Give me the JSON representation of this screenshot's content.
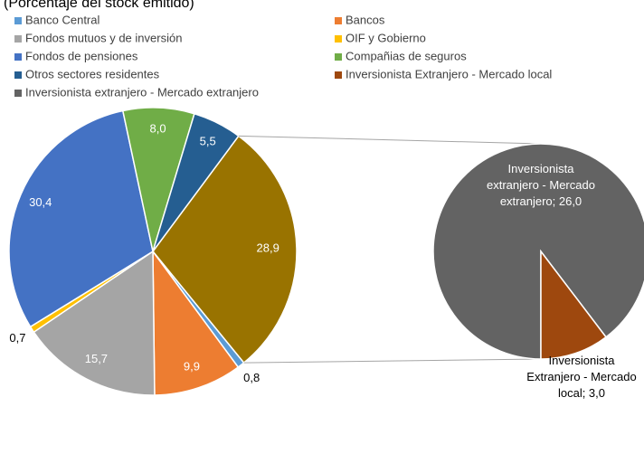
{
  "chart_data": {
    "type": "pie-of-pie",
    "subtitle": "(Porcentaje del stock emitido)",
    "series": [
      {
        "name": "Banco Central",
        "color": "#5b9bd5",
        "value": 0.8,
        "value_label": "0,8"
      },
      {
        "name": "Bancos",
        "color": "#ed7d31",
        "value": 9.9,
        "value_label": "9,9"
      },
      {
        "name": "Fondos mutuos y de inversión",
        "color": "#a5a5a5",
        "value": 15.7,
        "value_label": "15,7"
      },
      {
        "name": "OIF y Gobierno",
        "color": "#ffc000",
        "value": 0.7,
        "value_label": "0,7"
      },
      {
        "name": "Fondos de pensiones",
        "color": "#4472c4",
        "value": 30.4,
        "value_label": "30,4"
      },
      {
        "name": "Compañias de seguros",
        "color": "#70ad47",
        "value": 8.0,
        "value_label": "8,0"
      },
      {
        "name": "Otros sectores residentes",
        "color": "#255e91",
        "value": 5.5,
        "value_label": "5,5"
      },
      {
        "name": "Inversionista Extranjero - Mercado local",
        "color": "#9e480e",
        "value": 3.0,
        "value_label": "Inversionista Extranjero - Mercado local; 3,0",
        "secondary": true
      },
      {
        "name": "Inversionista extranjero - Mercado extranjero",
        "color": "#636363",
        "value": 26.0,
        "value_label": "Inversionista extranjero - Mercado extranjero; 26,0",
        "secondary": true
      }
    ],
    "other": {
      "value": 28.9,
      "value_label": "28,9",
      "color": "#997300"
    }
  }
}
